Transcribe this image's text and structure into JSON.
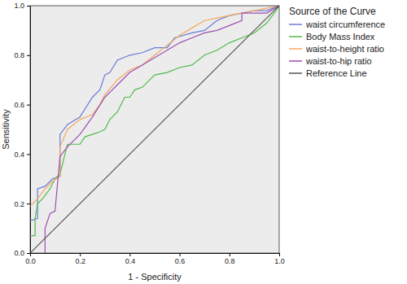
{
  "chart_data": {
    "type": "line",
    "x_label": "1 - Specificity",
    "y_label": "Sensitivity",
    "legend_title": "Source of the Curve",
    "legend": "right",
    "grid": false,
    "xlim": [
      0,
      1
    ],
    "ylim": [
      0,
      1
    ],
    "xticks": [
      {
        "value": 0,
        "label": "0.0"
      },
      {
        "value": 0.2,
        "label": "0.2"
      },
      {
        "value": 0.4,
        "label": "0.4"
      },
      {
        "value": 0.6,
        "label": "0.6"
      },
      {
        "value": 0.8,
        "label": "0.8"
      },
      {
        "value": 1,
        "label": "1.0"
      }
    ],
    "yticks": [
      {
        "value": 0,
        "label": "0.0"
      },
      {
        "value": 0.2,
        "label": "0.2"
      },
      {
        "value": 0.4,
        "label": "0.4"
      },
      {
        "value": 0.6,
        "label": "0.6"
      },
      {
        "value": 0.8,
        "label": "0.8"
      },
      {
        "value": 1,
        "label": "1.0"
      }
    ],
    "series": [
      {
        "name": "waist circumference",
        "color": "#6a7bd8",
        "x": [
          0,
          0.03,
          0.03,
          0.06,
          0.09,
          0.12,
          0.12,
          0.15,
          0.2,
          0.25,
          0.28,
          0.3,
          0.32,
          0.35,
          0.4,
          0.45,
          0.5,
          0.55,
          0.58,
          0.65,
          0.7,
          0.75,
          0.8,
          0.85,
          0.9,
          0.95,
          1
        ],
        "values": [
          0.13,
          0.14,
          0.26,
          0.27,
          0.3,
          0.31,
          0.48,
          0.52,
          0.55,
          0.63,
          0.66,
          0.72,
          0.73,
          0.78,
          0.8,
          0.81,
          0.83,
          0.83,
          0.87,
          0.89,
          0.9,
          0.94,
          0.96,
          0.97,
          0.98,
          0.98,
          1
        ]
      },
      {
        "name": "Body Mass Index",
        "color": "#4fbb4a",
        "x": [
          0,
          0.02,
          0.02,
          0.03,
          0.05,
          0.08,
          0.1,
          0.12,
          0.15,
          0.2,
          0.22,
          0.25,
          0.28,
          0.3,
          0.32,
          0.35,
          0.38,
          0.4,
          0.42,
          0.45,
          0.5,
          0.55,
          0.6,
          0.65,
          0.7,
          0.75,
          0.8,
          0.85,
          0.9,
          0.95,
          0.98,
          1
        ],
        "values": [
          0.07,
          0.07,
          0.14,
          0.2,
          0.22,
          0.26,
          0.3,
          0.32,
          0.44,
          0.44,
          0.47,
          0.48,
          0.49,
          0.5,
          0.54,
          0.57,
          0.63,
          0.63,
          0.66,
          0.67,
          0.72,
          0.73,
          0.75,
          0.76,
          0.8,
          0.82,
          0.85,
          0.87,
          0.89,
          0.93,
          0.97,
          1
        ]
      },
      {
        "name": "waist-to-height ratio",
        "color": "#f4a85e",
        "x": [
          0,
          0.03,
          0.06,
          0.09,
          0.12,
          0.12,
          0.15,
          0.2,
          0.25,
          0.28,
          0.3,
          0.35,
          0.4,
          0.45,
          0.5,
          0.55,
          0.6,
          0.65,
          0.7,
          0.75,
          0.8,
          0.85,
          0.9,
          0.95,
          1
        ],
        "values": [
          0.19,
          0.22,
          0.26,
          0.29,
          0.31,
          0.43,
          0.5,
          0.54,
          0.56,
          0.6,
          0.64,
          0.7,
          0.74,
          0.76,
          0.8,
          0.84,
          0.88,
          0.91,
          0.94,
          0.95,
          0.96,
          0.97,
          0.98,
          0.99,
          1
        ]
      },
      {
        "name": "waist-to-hip ratio",
        "color": "#9c4fb2",
        "x": [
          0.06,
          0.06,
          0.08,
          0.1,
          0.12,
          0.15,
          0.2,
          0.25,
          0.3,
          0.33,
          0.35,
          0.4,
          0.45,
          0.5,
          0.55,
          0.6,
          0.65,
          0.7,
          0.75,
          0.8,
          0.85,
          0.85,
          0.9,
          0.95,
          1
        ],
        "values": [
          0,
          0.1,
          0.16,
          0.17,
          0.39,
          0.43,
          0.48,
          0.55,
          0.63,
          0.66,
          0.68,
          0.73,
          0.76,
          0.79,
          0.82,
          0.85,
          0.87,
          0.89,
          0.9,
          0.92,
          0.94,
          0.97,
          0.97,
          0.97,
          1
        ]
      },
      {
        "name": "Reference Line",
        "color": "#555555",
        "x": [
          0,
          1
        ],
        "values": [
          0,
          1
        ]
      }
    ]
  }
}
